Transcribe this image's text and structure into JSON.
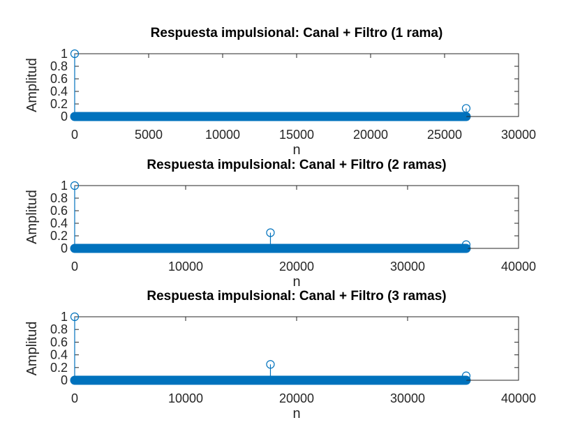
{
  "figure": {
    "background": "#ffffff",
    "series_color": "#0072bd",
    "axis_color": "#262626"
  },
  "chart_data": [
    {
      "type": "stem",
      "title": "Respuesta impulsional: Canal + Filtro (1 rama)",
      "xlabel": "n",
      "ylabel": "Amplitud",
      "xlim": [
        0,
        30000
      ],
      "ylim": [
        0,
        1
      ],
      "xticks": [
        0,
        5000,
        10000,
        15000,
        20000,
        25000,
        30000
      ],
      "xtick_labels": [
        "0",
        "5000",
        "10000",
        "15000",
        "20000",
        "25000",
        "30000"
      ],
      "yticks": [
        0,
        0.2,
        0.4,
        0.6,
        0.8,
        1
      ],
      "ytick_labels": [
        "0",
        "0.2",
        "0.4",
        "0.6",
        "0.8",
        "1"
      ],
      "dense_zero_range": [
        0,
        26460
      ],
      "series": [
        {
          "x": [
            0,
            26460
          ],
          "y": [
            1,
            0.13
          ]
        }
      ]
    },
    {
      "type": "stem",
      "title": "Respuesta impulsional: Canal + Filtro (2 ramas)",
      "xlabel": "n",
      "ylabel": "Amplitud",
      "xlim": [
        0,
        40000
      ],
      "ylim": [
        0,
        1
      ],
      "xticks": [
        0,
        10000,
        20000,
        30000,
        40000
      ],
      "xtick_labels": [
        "0",
        "10000",
        "20000",
        "30000",
        "40000"
      ],
      "yticks": [
        0,
        0.2,
        0.4,
        0.6,
        0.8,
        1
      ],
      "ytick_labels": [
        "0",
        "0.2",
        "0.4",
        "0.6",
        "0.8",
        "1"
      ],
      "dense_zero_range": [
        0,
        35280
      ],
      "series": [
        {
          "x": [
            0,
            17640,
            35280
          ],
          "y": [
            1,
            0.25,
            0.06
          ]
        }
      ]
    },
    {
      "type": "stem",
      "title": "Respuesta impulsional: Canal + Filtro (3 ramas)",
      "xlabel": "n",
      "ylabel": "Amplitud",
      "xlim": [
        0,
        40000
      ],
      "ylim": [
        0,
        1
      ],
      "xticks": [
        0,
        10000,
        20000,
        30000,
        40000
      ],
      "xtick_labels": [
        "0",
        "10000",
        "20000",
        "30000",
        "40000"
      ],
      "yticks": [
        0,
        0.2,
        0.4,
        0.6,
        0.8,
        1
      ],
      "ytick_labels": [
        "0",
        "0.2",
        "0.4",
        "0.6",
        "0.8",
        "1"
      ],
      "dense_zero_range": [
        0,
        35280
      ],
      "series": [
        {
          "x": [
            0,
            17640,
            35280
          ],
          "y": [
            1,
            0.25,
            0.07
          ]
        }
      ]
    }
  ]
}
